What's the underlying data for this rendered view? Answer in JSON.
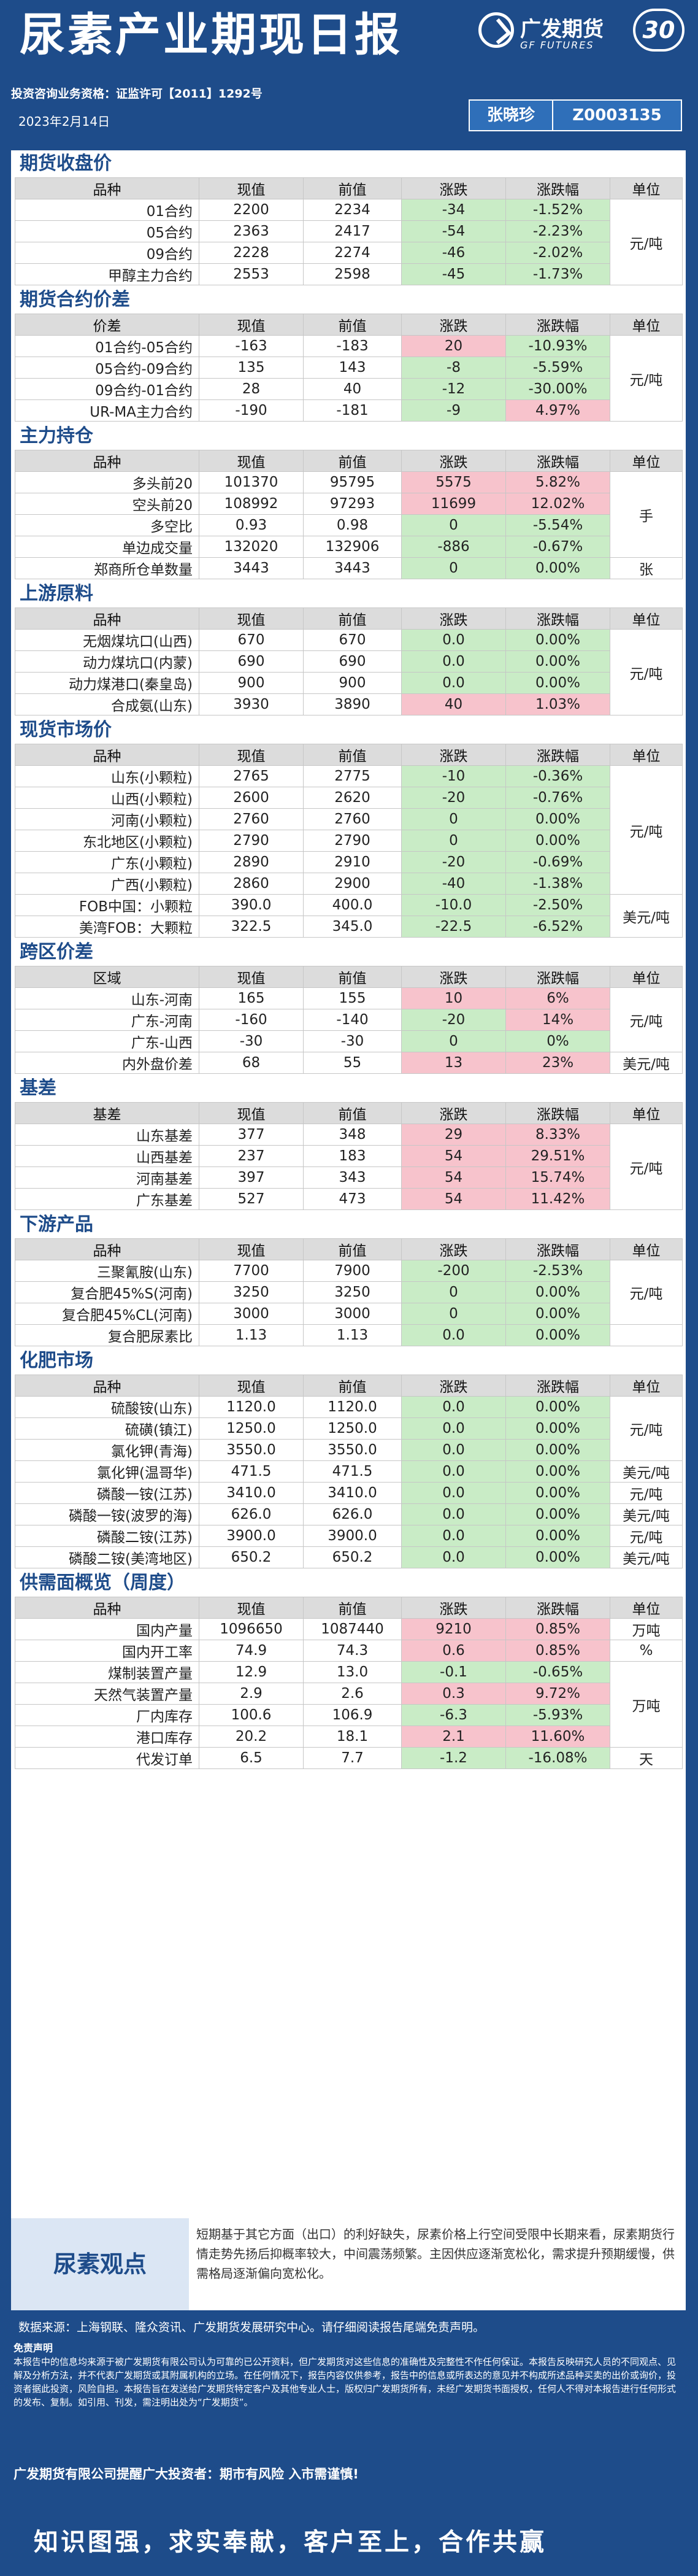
{
  "header": {
    "title": "尿素产业期现日报",
    "logo_cn": "广发期货",
    "logo_en": "GF FUTURES",
    "anniversary": "30",
    "license": "投资咨询业务资格：证监许可【2011】1292号",
    "date": "2023年2月14日",
    "author_name": "张晓珍",
    "author_id": "Z0003135"
  },
  "sections": [
    {
      "title": "期货收盘价",
      "headers": [
        "品种",
        "现值",
        "前值",
        "涨跌",
        "涨跌幅",
        "单位"
      ],
      "rows": [
        [
          "01合约",
          "2200",
          "2234",
          "-34",
          "-1.52%"
        ],
        [
          "05合约",
          "2363",
          "2417",
          "-54",
          "-2.23%"
        ],
        [
          "09合约",
          "2228",
          "2274",
          "-46",
          "-2.02%"
        ],
        [
          "甲醇主力合约",
          "2553",
          "2598",
          "-45",
          "-1.73%"
        ]
      ],
      "units": [
        {
          "text": "元/吨",
          "span": 4
        }
      ]
    },
    {
      "title": "期货合约价差",
      "headers": [
        "价差",
        "现值",
        "前值",
        "涨跌",
        "涨跌幅",
        "单位"
      ],
      "rows": [
        [
          "01合约-05合约",
          "-163",
          "-183",
          "20",
          "-10.93%"
        ],
        [
          "05合约-09合约",
          "135",
          "143",
          "-8",
          "-5.59%"
        ],
        [
          "09合约-01合约",
          "28",
          "40",
          "-12",
          "-30.00%"
        ],
        [
          "UR-MA主力合约",
          "-190",
          "-181",
          "-9",
          "4.97%"
        ]
      ],
      "units": [
        {
          "text": "元/吨",
          "span": 4
        }
      ]
    },
    {
      "title": "主力持仓",
      "headers": [
        "品种",
        "现值",
        "前值",
        "涨跌",
        "涨跌幅",
        "单位"
      ],
      "rows": [
        [
          "多头前20",
          "101370",
          "95795",
          "5575",
          "5.82%"
        ],
        [
          "空头前20",
          "108992",
          "97293",
          "11699",
          "12.02%"
        ],
        [
          "多空比",
          "0.93",
          "0.98",
          "0",
          "-5.54%"
        ],
        [
          "单边成交量",
          "132020",
          "132906",
          "-886",
          "-0.67%"
        ],
        [
          "郑商所仓单数量",
          "3443",
          "3443",
          "0",
          "0.00%"
        ]
      ],
      "units": [
        {
          "text": "手",
          "span": 4
        },
        {
          "text": "张",
          "span": 1
        }
      ]
    },
    {
      "title": "上游原料",
      "headers": [
        "品种",
        "现值",
        "前值",
        "涨跌",
        "涨跌幅",
        "单位"
      ],
      "rows": [
        [
          "无烟煤坑口(山西)",
          "670",
          "670",
          "0.0",
          "0.00%"
        ],
        [
          "动力煤坑口(内蒙)",
          "690",
          "690",
          "0.0",
          "0.00%"
        ],
        [
          "动力煤港口(秦皇岛)",
          "900",
          "900",
          "0.0",
          "0.00%"
        ],
        [
          "合成氨(山东)",
          "3930",
          "3890",
          "40",
          "1.03%"
        ]
      ],
      "units": [
        {
          "text": "元/吨",
          "span": 4
        }
      ]
    },
    {
      "title": "现货市场价",
      "headers": [
        "品种",
        "现值",
        "前值",
        "涨跌",
        "涨跌幅",
        "单位"
      ],
      "rows": [
        [
          "山东(小颗粒)",
          "2765",
          "2775",
          "-10",
          "-0.36%"
        ],
        [
          "山西(小颗粒)",
          "2600",
          "2620",
          "-20",
          "-0.76%"
        ],
        [
          "河南(小颗粒)",
          "2760",
          "2760",
          "0",
          "0.00%"
        ],
        [
          "东北地区(小颗粒)",
          "2790",
          "2790",
          "0",
          "0.00%"
        ],
        [
          "广东(小颗粒)",
          "2890",
          "2910",
          "-20",
          "-0.69%"
        ],
        [
          "广西(小颗粒)",
          "2860",
          "2900",
          "-40",
          "-1.38%"
        ],
        [
          "FOB中国：小颗粒",
          "390.0",
          "400.0",
          "-10.0",
          "-2.50%"
        ],
        [
          "美湾FOB：大颗粒",
          "322.5",
          "345.0",
          "-22.5",
          "-6.52%"
        ]
      ],
      "units": [
        {
          "text": "元/吨",
          "span": 6
        },
        {
          "text": "美元/吨",
          "span": 2
        }
      ]
    },
    {
      "title": "跨区价差",
      "headers": [
        "区域",
        "现值",
        "前值",
        "涨跌",
        "涨跌幅",
        "单位"
      ],
      "rows": [
        [
          "山东-河南",
          "165",
          "155",
          "10",
          "6%"
        ],
        [
          "广东-河南",
          "-160",
          "-140",
          "-20",
          "14%"
        ],
        [
          "广东-山西",
          "-30",
          "-30",
          "0",
          "0%"
        ],
        [
          "内外盘价差",
          "68",
          "55",
          "13",
          "23%"
        ]
      ],
      "units": [
        {
          "text": "元/吨",
          "span": 3
        },
        {
          "text": "美元/吨",
          "span": 1
        }
      ]
    },
    {
      "title": "基差",
      "headers": [
        "基差",
        "现值",
        "前值",
        "涨跌",
        "涨跌幅",
        "单位"
      ],
      "rows": [
        [
          "山东基差",
          "377",
          "348",
          "29",
          "8.33%"
        ],
        [
          "山西基差",
          "237",
          "183",
          "54",
          "29.51%"
        ],
        [
          "河南基差",
          "397",
          "343",
          "54",
          "15.74%"
        ],
        [
          "广东基差",
          "527",
          "473",
          "54",
          "11.42%"
        ]
      ],
      "units": [
        {
          "text": "元/吨",
          "span": 4
        }
      ]
    },
    {
      "title": "下游产品",
      "headers": [
        "品种",
        "现值",
        "前值",
        "涨跌",
        "涨跌幅",
        "单位"
      ],
      "rows": [
        [
          "三聚氰胺(山东)",
          "7700",
          "7900",
          "-200",
          "-2.53%"
        ],
        [
          "复合肥45%S(河南)",
          "3250",
          "3250",
          "0",
          "0.00%"
        ],
        [
          "复合肥45%CL(河南)",
          "3000",
          "3000",
          "0",
          "0.00%"
        ],
        [
          "复合肥尿素比",
          "1.13",
          "1.13",
          "0.0",
          "0.00%"
        ]
      ],
      "units": [
        {
          "text": "元/吨",
          "span": 3
        },
        {
          "text": "",
          "span": 1
        }
      ]
    },
    {
      "title": "化肥市场",
      "headers": [
        "品种",
        "现值",
        "前值",
        "涨跌",
        "涨跌幅",
        "单位"
      ],
      "rows": [
        [
          "硫酸铵(山东)",
          "1120.0",
          "1120.0",
          "0.0",
          "0.00%"
        ],
        [
          "硫磺(镇江)",
          "1250.0",
          "1250.0",
          "0.0",
          "0.00%"
        ],
        [
          "氯化钾(青海)",
          "3550.0",
          "3550.0",
          "0.0",
          "0.00%"
        ],
        [
          "氯化钾(温哥华)",
          "471.5",
          "471.5",
          "0.0",
          "0.00%"
        ],
        [
          "磷酸一铵(江苏)",
          "3410.0",
          "3410.0",
          "0.0",
          "0.00%"
        ],
        [
          "磷酸一铵(波罗的海)",
          "626.0",
          "626.0",
          "0.0",
          "0.00%"
        ],
        [
          "磷酸二铵(江苏)",
          "3900.0",
          "3900.0",
          "0.0",
          "0.00%"
        ],
        [
          "磷酸二铵(美湾地区)",
          "650.2",
          "650.2",
          "0.0",
          "0.00%"
        ]
      ],
      "units": [
        {
          "text": "元/吨",
          "span": 3
        },
        {
          "text": "美元/吨",
          "span": 1
        },
        {
          "text": "元/吨",
          "span": 1
        },
        {
          "text": "美元/吨",
          "span": 1
        },
        {
          "text": "元/吨",
          "span": 1
        },
        {
          "text": "美元/吨",
          "span": 1
        }
      ]
    },
    {
      "title": "供需面概览（周度）",
      "headers": [
        "品种",
        "现值",
        "前值",
        "涨跌",
        "涨跌幅",
        "单位"
      ],
      "rows": [
        [
          "国内产量",
          "1096650",
          "1087440",
          "9210",
          "0.85%"
        ],
        [
          "国内开工率",
          "74.9",
          "74.3",
          "0.6",
          "0.85%"
        ],
        [
          "煤制装置产量",
          "12.9",
          "13.0",
          "-0.1",
          "-0.65%"
        ],
        [
          "天然气装置产量",
          "2.9",
          "2.6",
          "0.3",
          "9.72%"
        ],
        [
          "厂内库存",
          "100.6",
          "106.9",
          "-6.3",
          "-5.93%"
        ],
        [
          "港口库存",
          "20.2",
          "18.1",
          "2.1",
          "11.60%"
        ],
        [
          "代发订单",
          "6.5",
          "7.7",
          "-1.2",
          "-16.08%"
        ]
      ],
      "units": [
        {
          "text": "万吨",
          "span": 1
        },
        {
          "text": "%",
          "span": 1
        },
        {
          "text": "万吨",
          "span": 4
        },
        {
          "text": "天",
          "span": 1
        }
      ]
    }
  ],
  "viewpoint": {
    "label": "尿素观点",
    "text": "短期基于其它方面（出口）的利好缺失，尿素价格上行空间受限中长期来看，尿素期货行情走势先扬后抑概率较大，中间震荡频繁。主因供应逐渐宽松化，需求提升预期缓慢，供需格局逐渐偏向宽松化。"
  },
  "footer": {
    "source": "数据来源：上海钢联、隆众资讯、广发期货发展研究中心。请仔细阅读报告尾端免责声明。",
    "disclaimer_title": "免责声明",
    "disclaimer": "本报告中的信息均来源于被广发期货有限公司认为可靠的已公开资料，但广发期货对这些信息的准确性及完整性不作任何保证。本报告反映研究人员的不同观点、见解及分析方法，并不代表广发期货或其附属机构的立场。在任何情况下，报告内容仅供参考，报告中的信息或所表达的意见并不构成所述品种买卖的出价或询价，投资者据此投资，风险自担。本报告旨在发送给广发期货特定客户及其他专业人士，版权归广发期货所有，未经广发期货书面授权，任何人不得对本报告进行任何形式的发布、复制。如引用、刊发，需注明出处为“广发期货”。",
    "warning": "广发期货有限公司提醒广大投资者：期市有风险 入市需谨慎!",
    "slogan": "知识图强，求实奉献，客户至上，合作共赢"
  }
}
